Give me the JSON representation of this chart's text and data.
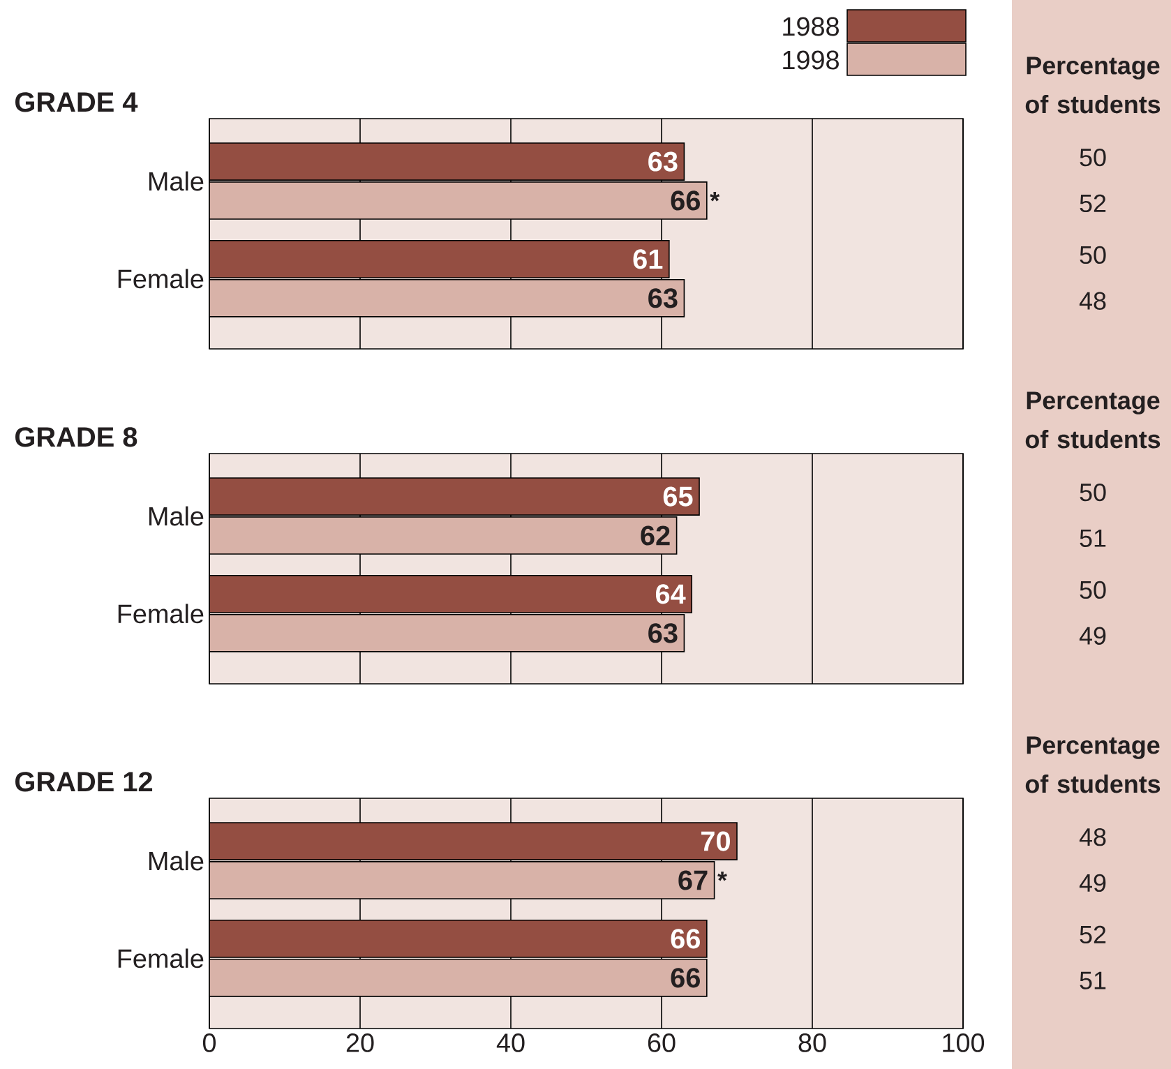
{
  "chart_data": [
    {
      "type": "bar",
      "orientation": "horizontal",
      "title": "GRADE 4",
      "categories": [
        "Male",
        "Female"
      ],
      "series": [
        {
          "name": "1988",
          "color": "#944e42",
          "values": [
            63,
            61
          ]
        },
        {
          "name": "1998",
          "color": "#d8b2a8",
          "values": [
            66,
            63
          ]
        }
      ],
      "xlim": [
        0,
        100
      ],
      "xticks": [
        0,
        20,
        40,
        60,
        80,
        100
      ],
      "grid": "x",
      "legend": "top right",
      "tick_labels": "y",
      "data_labels": true,
      "annotations": [
        "Percentage of students",
        "50",
        "52",
        "50",
        "48",
        {
          "text": "*",
          "x": 66,
          "y": "Male"
        }
      ]
    },
    {
      "type": "bar",
      "orientation": "horizontal",
      "title": "GRADE 8",
      "categories": [
        "Male",
        "Female"
      ],
      "series": [
        {
          "color": "#944e42",
          "values": [
            65,
            64
          ]
        },
        {
          "color": "#d8b2a8",
          "values": [
            62,
            63
          ]
        }
      ],
      "xlim": [
        0,
        100
      ],
      "xticks": [
        0,
        20,
        40,
        60,
        80,
        100
      ],
      "grid": "x",
      "tick_labels": "y",
      "data_labels": true,
      "annotations": [
        "Percentage of students",
        "50",
        "51",
        "50",
        "49"
      ]
    },
    {
      "type": "bar",
      "orientation": "horizontal",
      "title": "GRADE 12",
      "categories": [
        "Male",
        "Female"
      ],
      "series": [
        {
          "color": "#944e42",
          "values": [
            70,
            66
          ]
        },
        {
          "color": "#d8b2a8",
          "values": [
            67,
            66
          ]
        }
      ],
      "xlim": [
        0,
        100
      ],
      "xticks": [
        0,
        20,
        40,
        60,
        80,
        100
      ],
      "grid": "x",
      "data_labels": true,
      "annotations": [
        "Percentage of students",
        "48",
        "49",
        "52",
        "51",
        {
          "text": "*",
          "x": 67,
          "y": "Male"
        }
      ]
    }
  ]
}
